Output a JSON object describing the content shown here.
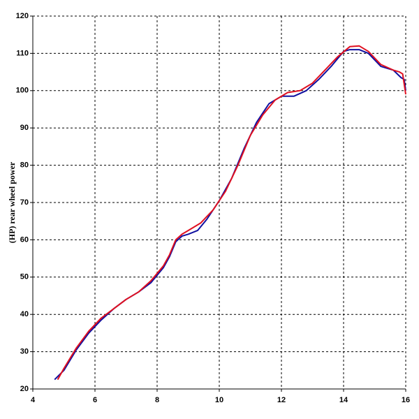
{
  "chart_data": {
    "type": "line",
    "y_label": "(HP) rear wheel power",
    "xlim": [
      4,
      16
    ],
    "xticks": [
      4,
      6,
      8,
      10,
      12,
      14,
      16
    ],
    "ylim": [
      20,
      120
    ],
    "yticks": [
      20,
      30,
      40,
      50,
      60,
      70,
      80,
      90,
      100,
      110,
      120
    ],
    "grid": true,
    "series": [
      {
        "color": "#1010a0",
        "x": [
          4.7,
          5.0,
          5.4,
          5.8,
          6.2,
          6.6,
          7.0,
          7.4,
          7.8,
          8.2,
          8.4,
          8.6,
          8.8,
          9.0,
          9.3,
          9.6,
          10.0,
          10.4,
          10.8,
          11.2,
          11.6,
          12.0,
          12.4,
          12.8,
          13.2,
          13.6,
          14.0,
          14.2,
          14.5,
          14.8,
          15.2,
          15.6,
          15.85,
          15.95,
          16.0
        ],
        "values": [
          22.5,
          25,
          30.5,
          35,
          38.5,
          41.5,
          44,
          46,
          48.5,
          52.5,
          55.5,
          59.5,
          61,
          61.5,
          62.5,
          65.5,
          70.5,
          76.5,
          84.5,
          91.5,
          96.5,
          98.5,
          98.5,
          100,
          103,
          106.5,
          110.5,
          111,
          111,
          110,
          106.5,
          105.5,
          103.5,
          103,
          100
        ]
      },
      {
        "color": "#e01020",
        "x": [
          4.8,
          5.0,
          5.4,
          5.8,
          6.2,
          6.6,
          7.0,
          7.4,
          7.8,
          8.2,
          8.4,
          8.6,
          8.8,
          9.0,
          9.4,
          9.8,
          10.2,
          10.6,
          11.0,
          11.4,
          11.8,
          12.2,
          12.6,
          13.0,
          13.4,
          13.8,
          14.2,
          14.5,
          14.8,
          15.2,
          15.6,
          15.8,
          15.9,
          16.0
        ],
        "values": [
          22.5,
          25.5,
          31,
          35.5,
          39,
          41.5,
          44,
          46,
          49,
          53,
          56,
          60,
          61.5,
          62.5,
          64.5,
          68,
          73,
          80,
          88,
          93.5,
          97.5,
          99.5,
          100,
          102,
          105.5,
          109,
          111.8,
          112,
          110.5,
          107,
          105.5,
          105,
          104.5,
          99
        ]
      }
    ]
  }
}
